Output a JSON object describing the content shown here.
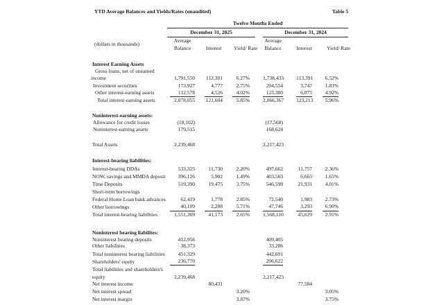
{
  "title": "YTD Average Balances and Yields/Rates (unaudited)",
  "table_label": "Table 5",
  "header": {
    "span_title": "Twelve Months Ended",
    "note": "(dollars in thousands)",
    "groups": [
      "December 31, 2025",
      "December 31, 2024"
    ],
    "col_avg1": "Average",
    "col_avg2": "Balance",
    "col_interest": "Interest",
    "col_rate": "Yield/ Rate"
  },
  "rows": [
    {
      "kind": "blank"
    },
    {
      "kind": "section",
      "label": "Interest Earning Assets",
      "indent": 2
    },
    {
      "kind": "item",
      "label": "Gross loans, net of unearned",
      "indent": 6
    },
    {
      "kind": "item",
      "label": "income",
      "indent": 0,
      "v": [
        "1,791,550",
        "112,301",
        "6.27%",
        "1,738,433",
        "113,391",
        "6.52%"
      ]
    },
    {
      "kind": "item",
      "label": "Investment securities",
      "indent": 3,
      "v": [
        "173,927",
        "4,777",
        "2.75%",
        "204,554",
        "3,747",
        "1.83%"
      ]
    },
    {
      "kind": "item",
      "label": "Other interest-earning assets",
      "indent": 6,
      "u": "all",
      "v": [
        "112,578",
        "4,526",
        "4.02%",
        "123,380",
        "6,075",
        "4.92%"
      ]
    },
    {
      "kind": "item",
      "label": "Total interest-earning assets",
      "indent": 9,
      "v": [
        "2,078,055",
        "121,604",
        "5.85%",
        "2,066,367",
        "123,213",
        "5.96%"
      ]
    },
    {
      "kind": "blank"
    },
    {
      "kind": "section",
      "label": "Noninterest-earning assets:",
      "indent": 2
    },
    {
      "kind": "item",
      "label": "Allowance for credit losses",
      "indent": 3,
      "v": [
        "(18,102)",
        "",
        "",
        "(17,568)",
        "",
        ""
      ]
    },
    {
      "kind": "item",
      "label": "Noninterest-earning assets",
      "indent": 3,
      "v": [
        "179,515",
        "",
        "",
        "168,624",
        "",
        ""
      ]
    },
    {
      "kind": "blank"
    },
    {
      "kind": "item",
      "label": "Total Assets",
      "indent": 2,
      "v": [
        "2,239,468",
        "",
        "",
        "2,217,423",
        "",
        ""
      ]
    },
    {
      "kind": "blank"
    },
    {
      "kind": "section",
      "label": "Interest-bearing liabilities:",
      "indent": 2
    },
    {
      "kind": "item",
      "label": "Interest-bearing DDAs",
      "indent": 2,
      "v": [
        "533,325",
        "11,730",
        "2.20%",
        "497,662",
        "11,757",
        "2.36%"
      ]
    },
    {
      "kind": "item",
      "label": "NOW, savings and MMDA deposit",
      "indent": 2,
      "v": [
        "396,126",
        "5,902",
        "1.49%",
        "403,563",
        "6,665",
        "1.65%"
      ]
    },
    {
      "kind": "item",
      "label": "Time Deposits",
      "indent": 2,
      "v": [
        "519,390",
        "19,475",
        "3.75%",
        "546,599",
        "21,931",
        "4.01%"
      ]
    },
    {
      "kind": "item",
      "label": "Short-term borrowings",
      "indent": 2
    },
    {
      "kind": "item",
      "label": "Federal Home Loan bank advances",
      "indent": 2,
      "v": [
        "62,419",
        "1,778",
        "2.85%",
        "72,540",
        "1,983",
        "2.73%"
      ]
    },
    {
      "kind": "item",
      "label": "Other borrowings",
      "indent": 2,
      "u": "all",
      "v": [
        "40,109",
        "2,288",
        "5.71%",
        "47,746",
        "3,293",
        "6.90%"
      ]
    },
    {
      "kind": "item",
      "label": "Total interest-bearing liabilities",
      "indent": 2,
      "v": [
        "1,551,369",
        "41,173",
        "2.65%",
        "1,568,110",
        "45,629",
        "2.91%"
      ]
    },
    {
      "kind": "blank"
    },
    {
      "kind": "section",
      "label": "Noninterest bearing liabilites:",
      "indent": 2
    },
    {
      "kind": "item",
      "label": "Noninterest bearing deposits",
      "indent": 2,
      "v": [
        "412,956",
        "",
        "",
        "409,405",
        "",
        ""
      ]
    },
    {
      "kind": "item",
      "label": "Other liabilities",
      "indent": 2,
      "v": [
        "38,373",
        "",
        "",
        "33,286",
        "",
        ""
      ]
    },
    {
      "kind": "item",
      "label": "Total noninterest bearing liabilities",
      "indent": 2,
      "v": [
        "451,329",
        "",
        "",
        "442,691",
        "",
        ""
      ]
    },
    {
      "kind": "item",
      "label": "Shareholders' equity",
      "indent": 2,
      "u": "bal",
      "v": [
        "236,770",
        "",
        "",
        "206,622",
        "",
        ""
      ]
    },
    {
      "kind": "item",
      "label": "Total liabilities and shareholders's",
      "indent": 2
    },
    {
      "kind": "item",
      "label": "equity",
      "indent": 2,
      "v": [
        "2,239,468",
        "",
        "",
        "2,217,423",
        "",
        ""
      ]
    },
    {
      "kind": "item",
      "label": "Net interest income",
      "indent": 2,
      "v": [
        "",
        "80,431",
        "",
        "",
        "77,584",
        ""
      ]
    },
    {
      "kind": "item",
      "label": "Net interest spread",
      "indent": 2,
      "v": [
        "",
        "",
        "3.20%",
        "",
        "",
        "3.05%"
      ]
    },
    {
      "kind": "item",
      "label": "Net interest margin",
      "indent": 2,
      "v": [
        "",
        "",
        "3.87%",
        "",
        "",
        "3.75%"
      ]
    }
  ]
}
